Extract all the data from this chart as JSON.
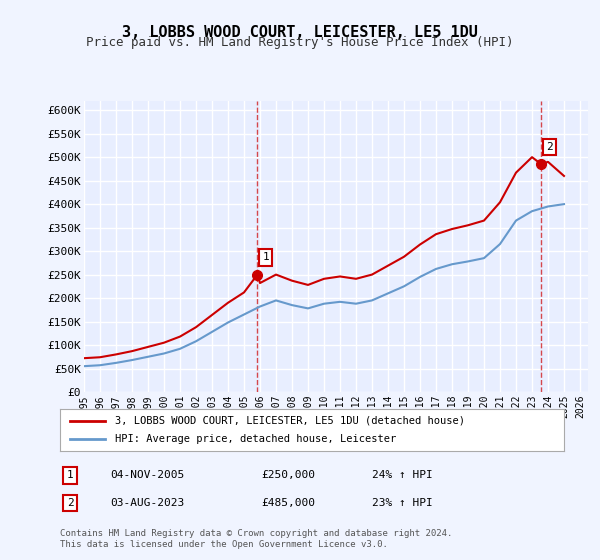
{
  "title": "3, LOBBS WOOD COURT, LEICESTER, LE5 1DU",
  "subtitle": "Price paid vs. HM Land Registry's House Price Index (HPI)",
  "ylabel_ticks": [
    "£0",
    "£50K",
    "£100K",
    "£150K",
    "£200K",
    "£250K",
    "£300K",
    "£350K",
    "£400K",
    "£450K",
    "£500K",
    "£550K",
    "£600K"
  ],
  "ytick_values": [
    0,
    50000,
    100000,
    150000,
    200000,
    250000,
    300000,
    350000,
    400000,
    450000,
    500000,
    550000,
    600000
  ],
  "ylim": [
    0,
    620000
  ],
  "xlim_start": 1995.0,
  "xlim_end": 2026.5,
  "background_color": "#f0f4ff",
  "plot_bg_color": "#e8eeff",
  "grid_color": "#ffffff",
  "red_line_color": "#cc0000",
  "blue_line_color": "#6699cc",
  "sale1_x": 2005.84,
  "sale1_y": 250000,
  "sale2_x": 2023.58,
  "sale2_y": 485000,
  "annotation1_label": "1",
  "annotation2_label": "2",
  "legend_red": "3, LOBBS WOOD COURT, LEICESTER, LE5 1DU (detached house)",
  "legend_blue": "HPI: Average price, detached house, Leicester",
  "table_row1": [
    "1",
    "04-NOV-2005",
    "£250,000",
    "24% ↑ HPI"
  ],
  "table_row2": [
    "2",
    "03-AUG-2023",
    "£485,000",
    "23% ↑ HPI"
  ],
  "footer": "Contains HM Land Registry data © Crown copyright and database right 2024.\nThis data is licensed under the Open Government Licence v3.0.",
  "hpi_index_years": [
    1995,
    1996,
    1997,
    1998,
    1999,
    2000,
    2001,
    2002,
    2003,
    2004,
    2005,
    2006,
    2007,
    2008,
    2009,
    2010,
    2011,
    2012,
    2013,
    2014,
    2015,
    2016,
    2017,
    2018,
    2019,
    2020,
    2021,
    2022,
    2023,
    2024,
    2025
  ],
  "hpi_values": [
    55000,
    57000,
    62000,
    68000,
    75000,
    82000,
    92000,
    108000,
    128000,
    148000,
    165000,
    182000,
    195000,
    185000,
    178000,
    188000,
    192000,
    188000,
    195000,
    210000,
    225000,
    245000,
    262000,
    272000,
    278000,
    285000,
    315000,
    365000,
    385000,
    395000,
    400000
  ],
  "red_line_years": [
    1995,
    1996,
    1997,
    1998,
    1999,
    2000,
    2001,
    2002,
    2003,
    2004,
    2005,
    2005.84,
    2006,
    2007,
    2008,
    2009,
    2010,
    2011,
    2012,
    2013,
    2014,
    2015,
    2016,
    2017,
    2018,
    2019,
    2020,
    2021,
    2022,
    2023,
    2023.58,
    2024,
    2025
  ],
  "red_line_values": [
    72000,
    74000,
    80000,
    87000,
    96000,
    105000,
    118000,
    138000,
    164000,
    190000,
    212000,
    250000,
    232000,
    250000,
    237000,
    228000,
    241000,
    246000,
    241000,
    250000,
    269000,
    288000,
    314000,
    336000,
    347000,
    355000,
    365000,
    404000,
    467000,
    500000,
    485000,
    490000,
    460000
  ]
}
